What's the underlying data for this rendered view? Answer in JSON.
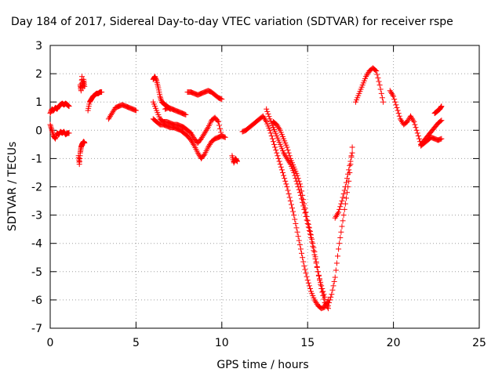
{
  "chart_data": {
    "type": "scatter",
    "title": "Day 184 of 2017, Sidereal Day-to-day VTEC variation (SDTVAR) for receiver rspe",
    "xlabel": "GPS time / hours",
    "ylabel": "SDTVAR / TECUs",
    "xlim": [
      0,
      25
    ],
    "ylim": [
      -7,
      3
    ],
    "xticks": [
      "0",
      "5",
      "10",
      "15",
      "20",
      "25"
    ],
    "yticks": [
      "3",
      "2",
      "1",
      "0",
      "-1",
      "-2",
      "-3",
      "-4",
      "-5",
      "-6",
      "-7"
    ],
    "grid": true,
    "marker": "+",
    "color": "#ff0000",
    "series": [
      {
        "name": "",
        "x": [
          0.0,
          0.1,
          0.2,
          0.3,
          0.4,
          0.5,
          0.6,
          0.7,
          0.8,
          0.9,
          1.0,
          1.1
        ],
        "y": [
          0.6,
          0.75,
          0.7,
          0.8,
          0.75,
          0.85,
          0.9,
          0.95,
          0.9,
          0.95,
          0.9,
          0.85
        ]
      },
      {
        "name": "",
        "x": [
          0.0,
          0.1,
          0.2,
          0.3,
          0.4,
          0.5,
          0.6,
          0.7,
          0.8,
          0.9,
          1.0,
          1.1
        ],
        "y": [
          0.2,
          0.0,
          -0.2,
          -0.3,
          -0.1,
          -0.15,
          -0.05,
          -0.1,
          -0.05,
          -0.15,
          -0.1,
          -0.1
        ]
      },
      {
        "name": "",
        "x": [
          1.65,
          1.7,
          1.75,
          1.8,
          1.85,
          1.9,
          1.95,
          2.0
        ],
        "y": [
          -0.9,
          -1.2,
          -0.8,
          -0.6,
          -0.5,
          -0.45,
          -0.4,
          -0.45
        ]
      },
      {
        "name": "",
        "x": [
          1.75,
          1.8,
          1.85,
          1.9,
          1.95,
          2.0
        ],
        "y": [
          1.6,
          1.4,
          1.9,
          1.5,
          1.8,
          1.55
        ]
      },
      {
        "name": "",
        "x": [
          2.2,
          2.3,
          2.4,
          2.5,
          2.6,
          2.7,
          2.8,
          2.9,
          3.0
        ],
        "y": [
          0.7,
          1.0,
          1.1,
          1.2,
          1.25,
          1.3,
          1.3,
          1.35,
          1.35
        ]
      },
      {
        "name": "",
        "x": [
          3.4,
          3.6,
          3.8,
          4.0,
          4.2,
          4.4,
          4.6,
          4.8,
          5.0
        ],
        "y": [
          0.4,
          0.6,
          0.8,
          0.85,
          0.9,
          0.85,
          0.8,
          0.75,
          0.7
        ]
      },
      {
        "name": "",
        "x": [
          6.0,
          6.1,
          6.2,
          6.3,
          6.4,
          6.5,
          6.6,
          6.7,
          6.8,
          6.9,
          7.0
        ],
        "y": [
          1.8,
          1.9,
          1.75,
          1.5,
          1.2,
          1.0,
          0.95,
          0.9,
          0.85,
          0.8,
          0.75
        ]
      },
      {
        "name": "",
        "x": [
          6.0,
          6.2,
          6.4,
          6.6,
          6.8,
          7.0,
          7.2,
          7.4,
          7.6,
          7.8,
          8.0,
          8.2,
          8.4,
          8.6,
          8.8,
          9.0,
          9.2,
          9.4,
          9.6,
          9.8,
          10.0
        ],
        "y": [
          0.4,
          0.3,
          0.2,
          0.2,
          0.15,
          0.1,
          0.1,
          0.05,
          0.0,
          -0.1,
          -0.2,
          -0.35,
          -0.55,
          -0.8,
          -1.0,
          -0.85,
          -0.6,
          -0.4,
          -0.3,
          -0.25,
          -0.2
        ]
      },
      {
        "name": "",
        "x": [
          6.0,
          6.2,
          6.4,
          6.6,
          6.8,
          7.0,
          7.2,
          7.4,
          7.6,
          7.8,
          8.0,
          8.2,
          8.4,
          8.6,
          8.8,
          9.0,
          9.2,
          9.4,
          9.6,
          9.8,
          10.0,
          10.2
        ],
        "y": [
          1.0,
          0.7,
          0.4,
          0.3,
          0.3,
          0.25,
          0.2,
          0.2,
          0.15,
          0.1,
          0.0,
          -0.1,
          -0.3,
          -0.45,
          -0.3,
          -0.1,
          0.1,
          0.35,
          0.45,
          0.3,
          -0.2,
          -0.25
        ]
      },
      {
        "name": "",
        "x": [
          6.7,
          6.9,
          7.1,
          7.3,
          7.5,
          7.7,
          7.9
        ],
        "y": [
          0.75,
          0.8,
          0.75,
          0.7,
          0.65,
          0.6,
          0.55
        ]
      },
      {
        "name": "",
        "x": [
          8.0,
          8.2,
          8.4,
          8.6,
          8.8,
          9.0,
          9.2,
          9.4,
          9.6,
          9.8,
          10.0
        ],
        "y": [
          1.35,
          1.35,
          1.3,
          1.25,
          1.3,
          1.35,
          1.4,
          1.35,
          1.25,
          1.15,
          1.1
        ]
      },
      {
        "name": "",
        "x": [
          10.6,
          10.7,
          10.8,
          10.9
        ],
        "y": [
          -0.9,
          -1.15,
          -1.0,
          -1.1
        ]
      },
      {
        "name": "",
        "x": [
          11.2,
          11.4,
          11.6,
          11.8,
          12.0,
          12.2,
          12.4,
          12.6,
          12.8,
          13.0,
          13.2,
          13.4,
          13.6,
          13.8,
          14.0,
          14.2,
          14.4,
          14.6,
          14.8,
          15.0,
          15.2,
          15.4,
          15.6,
          15.8,
          16.0,
          16.2
        ],
        "y": [
          -0.05,
          0.0,
          0.1,
          0.2,
          0.3,
          0.4,
          0.5,
          0.3,
          0.0,
          -0.4,
          -0.8,
          -1.2,
          -1.6,
          -2.0,
          -2.5,
          -3.0,
          -3.6,
          -4.2,
          -4.8,
          -5.3,
          -5.7,
          -6.0,
          -6.2,
          -6.3,
          -6.25,
          -6.0
        ]
      },
      {
        "name": "",
        "x": [
          12.6,
          12.8,
          13.0,
          13.2,
          13.4,
          13.6,
          13.8,
          14.0,
          14.2,
          14.4,
          14.6,
          14.8,
          15.0,
          15.2,
          15.4,
          15.6,
          15.8,
          16.0
        ],
        "y": [
          0.75,
          0.4,
          0.1,
          -0.2,
          -0.5,
          -0.8,
          -1.0,
          -1.2,
          -1.5,
          -1.9,
          -2.3,
          -2.8,
          -3.3,
          -3.8,
          -4.4,
          -5.0,
          -5.5,
          -5.9
        ]
      },
      {
        "name": "",
        "x": [
          13.0,
          13.2,
          13.4,
          13.6,
          13.8,
          14.0,
          14.2,
          14.4,
          14.6,
          14.8,
          15.0,
          15.2,
          15.4,
          15.6,
          15.8,
          16.0,
          16.2
        ],
        "y": [
          0.3,
          0.2,
          0.0,
          -0.3,
          -0.6,
          -1.0,
          -1.3,
          -1.6,
          -2.0,
          -2.6,
          -3.2,
          -3.7,
          -4.3,
          -5.0,
          -5.6,
          -6.1,
          -6.3
        ]
      },
      {
        "name": "",
        "x": [
          16.2,
          16.4,
          16.6,
          16.8,
          17.0,
          17.2,
          17.4,
          17.6
        ],
        "y": [
          -6.2,
          -5.8,
          -5.2,
          -4.2,
          -3.4,
          -2.6,
          -1.8,
          -0.6
        ]
      },
      {
        "name": "",
        "x": [
          16.6,
          16.8,
          17.0,
          17.2,
          17.4,
          17.6
        ],
        "y": [
          -3.1,
          -2.9,
          -2.5,
          -2.0,
          -1.4,
          -0.8
        ]
      },
      {
        "name": "",
        "x": [
          17.8,
          18.0,
          18.2,
          18.4,
          18.6,
          18.8,
          19.0,
          19.2,
          19.4
        ],
        "y": [
          1.0,
          1.3,
          1.6,
          1.9,
          2.1,
          2.2,
          2.1,
          1.6,
          1.0
        ]
      },
      {
        "name": "",
        "x": [
          19.8,
          20.0,
          20.2,
          20.4,
          20.6,
          20.8,
          21.0,
          21.2,
          21.4,
          21.6
        ],
        "y": [
          1.4,
          1.2,
          0.8,
          0.4,
          0.2,
          0.3,
          0.5,
          0.3,
          -0.1,
          -0.5
        ]
      },
      {
        "name": "",
        "x": [
          21.6,
          21.8,
          22.0,
          22.2,
          22.4,
          22.6,
          22.8
        ],
        "y": [
          -0.55,
          -0.45,
          -0.35,
          -0.25,
          -0.3,
          -0.35,
          -0.3
        ]
      },
      {
        "name": "",
        "x": [
          21.6,
          21.8,
          22.0,
          22.2,
          22.4,
          22.6,
          22.8
        ],
        "y": [
          -0.5,
          -0.35,
          -0.2,
          -0.05,
          0.1,
          0.25,
          0.35
        ]
      },
      {
        "name": "",
        "x": [
          22.4,
          22.5,
          22.6,
          22.7,
          22.8
        ],
        "y": [
          0.6,
          0.65,
          0.7,
          0.75,
          0.85
        ]
      }
    ]
  }
}
